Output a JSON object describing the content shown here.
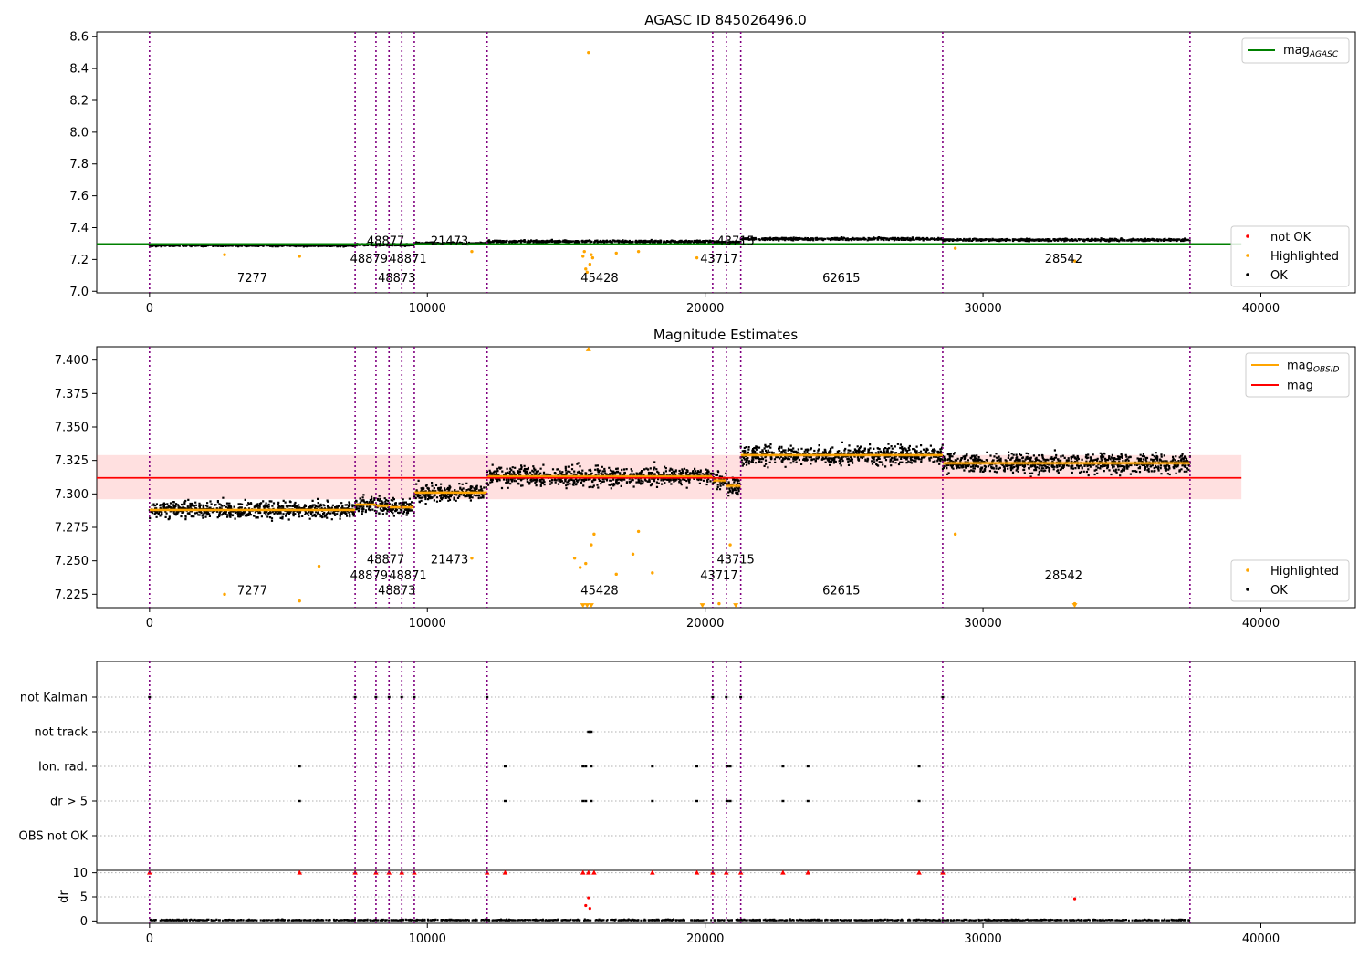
{
  "figure": {
    "top_title": "AGASC ID 845026496.0",
    "middle_title": "Magnitude Estimates"
  },
  "chart_data": [
    {
      "type": "scatter",
      "title": "AGASC ID 845026496.0",
      "xlim": [
        -1900,
        43400
      ],
      "ylim": [
        6.99,
        8.63
      ],
      "xticks": [
        0,
        10000,
        20000,
        30000,
        40000
      ],
      "yticks": [
        7.0,
        7.2,
        7.4,
        7.6,
        7.8,
        8.0,
        8.2,
        8.4,
        8.6
      ],
      "grid": false,
      "legend_top": {
        "placement": "top-right",
        "entries": [
          {
            "label": "mag",
            "subscript": "AGASC",
            "color": "#008000"
          }
        ]
      },
      "legend_bottom": {
        "placement": "lower-right",
        "entries": [
          {
            "label": "not OK",
            "color": "#ff0000"
          },
          {
            "label": "Highlighted",
            "color": "#ffa500"
          },
          {
            "label": "OK",
            "color": "#000000"
          }
        ]
      },
      "mag_agasc": 7.297,
      "mag_agasc_x": [
        -1900,
        39300
      ],
      "obs_segments": [
        {
          "x0": 0,
          "x1": 7400,
          "mean": 7.288,
          "spread": 0.006
        },
        {
          "x0": 7400,
          "x1": 8150,
          "mean": 7.292,
          "spread": 0.006
        },
        {
          "x0": 8150,
          "x1": 8620,
          "mean": 7.291,
          "spread": 0.006
        },
        {
          "x0": 8620,
          "x1": 9080,
          "mean": 7.29,
          "spread": 0.006
        },
        {
          "x0": 9080,
          "x1": 9530,
          "mean": 7.29,
          "spread": 0.006
        },
        {
          "x0": 9530,
          "x1": 12150,
          "mean": 7.301,
          "spread": 0.006
        },
        {
          "x0": 12150,
          "x1": 20270,
          "mean": 7.313,
          "spread": 0.007
        },
        {
          "x0": 20270,
          "x1": 20760,
          "mean": 7.31,
          "spread": 0.007
        },
        {
          "x0": 20760,
          "x1": 21280,
          "mean": 7.306,
          "spread": 0.007
        },
        {
          "x0": 21280,
          "x1": 28550,
          "mean": 7.329,
          "spread": 0.007
        },
        {
          "x0": 28550,
          "x1": 37450,
          "mean": 7.323,
          "spread": 0.007
        }
      ],
      "obs_lines": [
        0,
        7400,
        8150,
        8620,
        9080,
        9530,
        12150,
        20270,
        20760,
        21280,
        28550,
        37450
      ],
      "obsid_labels": [
        {
          "text": "7277",
          "x": 3700,
          "y": 7.06
        },
        {
          "text": "48879",
          "x": 7900,
          "y": 7.18
        },
        {
          "text": "48877",
          "x": 8500,
          "y": 7.29
        },
        {
          "text": "48873",
          "x": 8900,
          "y": 7.06
        },
        {
          "text": "48871",
          "x": 9300,
          "y": 7.18
        },
        {
          "text": "21473",
          "x": 10800,
          "y": 7.29
        },
        {
          "text": "45428",
          "x": 16200,
          "y": 7.06
        },
        {
          "text": "43717",
          "x": 20500,
          "y": 7.18
        },
        {
          "text": "43715",
          "x": 21100,
          "y": 7.29
        },
        {
          "text": "62615",
          "x": 24900,
          "y": 7.06
        },
        {
          "text": "28542",
          "x": 32900,
          "y": 7.18
        }
      ],
      "highlighted_points": [
        {
          "x": 15800,
          "y": 8.5
        },
        {
          "x": 15700,
          "y": 7.14
        },
        {
          "x": 15750,
          "y": 7.12
        },
        {
          "x": 15850,
          "y": 7.17
        },
        {
          "x": 15600,
          "y": 7.22
        },
        {
          "x": 15900,
          "y": 7.23
        },
        {
          "x": 15650,
          "y": 7.25
        },
        {
          "x": 15950,
          "y": 7.21
        },
        {
          "x": 2700,
          "y": 7.23
        },
        {
          "x": 5400,
          "y": 7.22
        },
        {
          "x": 33300,
          "y": 7.19
        },
        {
          "x": 29000,
          "y": 7.27
        },
        {
          "x": 19700,
          "y": 7.21
        },
        {
          "x": 16800,
          "y": 7.24
        },
        {
          "x": 17600,
          "y": 7.25
        },
        {
          "x": 11600,
          "y": 7.25
        }
      ]
    },
    {
      "type": "scatter",
      "title": "Magnitude Estimates",
      "xlim": [
        -1900,
        43400
      ],
      "ylim": [
        7.215,
        7.41
      ],
      "xticks": [
        0,
        10000,
        20000,
        30000,
        40000
      ],
      "yticks": [
        7.225,
        7.25,
        7.275,
        7.3,
        7.325,
        7.35,
        7.375,
        7.4
      ],
      "ytick_labels": [
        "7.225",
        "7.250",
        "7.275",
        "7.300",
        "7.325",
        "7.350",
        "7.375",
        "7.400"
      ],
      "grid": false,
      "legend_top": {
        "placement": "top-right",
        "entries": [
          {
            "label": "mag",
            "subscript": "OBSID",
            "color": "#ffa500"
          },
          {
            "label": "mag",
            "color": "#ff0000"
          }
        ]
      },
      "legend_bottom": {
        "placement": "lower-right",
        "entries": [
          {
            "label": "Highlighted",
            "color": "#ffa500"
          },
          {
            "label": "OK",
            "color": "#000000"
          }
        ]
      },
      "mag": 7.312,
      "mag_band": [
        7.296,
        7.329
      ],
      "mag_x": [
        -1900,
        39300
      ],
      "obsid_labels": [
        {
          "text": "7277",
          "x": 3700,
          "y": 7.225
        },
        {
          "text": "48879",
          "x": 7900,
          "y": 7.236
        },
        {
          "text": "48877",
          "x": 8500,
          "y": 7.248
        },
        {
          "text": "48873",
          "x": 8900,
          "y": 7.225
        },
        {
          "text": "48871",
          "x": 9300,
          "y": 7.236
        },
        {
          "text": "21473",
          "x": 10800,
          "y": 7.248
        },
        {
          "text": "45428",
          "x": 16200,
          "y": 7.225
        },
        {
          "text": "43717",
          "x": 20500,
          "y": 7.236
        },
        {
          "text": "43715",
          "x": 21100,
          "y": 7.248
        },
        {
          "text": "62615",
          "x": 24900,
          "y": 7.225
        },
        {
          "text": "28542",
          "x": 32900,
          "y": 7.236
        }
      ],
      "highlighted_points": [
        {
          "x": 2700,
          "y": 7.225
        },
        {
          "x": 5400,
          "y": 7.22
        },
        {
          "x": 6100,
          "y": 7.246
        },
        {
          "x": 15300,
          "y": 7.252
        },
        {
          "x": 15500,
          "y": 7.245
        },
        {
          "x": 15700,
          "y": 7.248
        },
        {
          "x": 15900,
          "y": 7.262
        },
        {
          "x": 16000,
          "y": 7.27
        },
        {
          "x": 16800,
          "y": 7.24
        },
        {
          "x": 17400,
          "y": 7.255
        },
        {
          "x": 17600,
          "y": 7.272
        },
        {
          "x": 18100,
          "y": 7.241
        },
        {
          "x": 11600,
          "y": 7.252
        },
        {
          "x": 20900,
          "y": 7.262
        },
        {
          "x": 29000,
          "y": 7.27
        },
        {
          "x": 20500,
          "y": 7.218
        },
        {
          "x": 33300,
          "y": 7.218
        }
      ],
      "off_scale_markers": [
        {
          "x": 15800,
          "y": 7.408,
          "dir": "up"
        },
        {
          "x": 15600,
          "y": 7.217,
          "dir": "down"
        },
        {
          "x": 15750,
          "y": 7.217,
          "dir": "down"
        },
        {
          "x": 15900,
          "y": 7.217,
          "dir": "down"
        },
        {
          "x": 19900,
          "y": 7.217,
          "dir": "down"
        },
        {
          "x": 21100,
          "y": 7.217,
          "dir": "down"
        },
        {
          "x": 33300,
          "y": 7.217,
          "dir": "down"
        }
      ]
    },
    {
      "type": "scatter",
      "title": "",
      "xlim": [
        -1900,
        43400
      ],
      "xticks": [
        0,
        10000,
        20000,
        30000,
        40000
      ],
      "flag_rows": [
        "not Kalman",
        "not track",
        "Ion. rad.",
        "dr > 5",
        "OBS not OK"
      ],
      "flag_points": {
        "not Kalman": [
          0,
          7400,
          8150,
          8620,
          9080,
          9530,
          12150,
          20270,
          20760,
          21280,
          28550
        ],
        "not track": [
          15800,
          15850,
          15900
        ],
        "Ion. rad.": [
          5400,
          12800,
          15600,
          15700,
          15900,
          18100,
          19700,
          20800,
          20900,
          22800,
          23700,
          27700
        ],
        "dr > 5": [
          5400,
          12800,
          15600,
          15700,
          15900,
          18100,
          19700,
          20800,
          20900,
          22800,
          23700,
          27700
        ],
        "OBS not OK": []
      },
      "dr_ylabel": "dr",
      "dr_ylim": [
        -0.5,
        10.5
      ],
      "dr_yticks": [
        0,
        5,
        10
      ],
      "dr_clip_points": [
        0,
        5400,
        7400,
        8150,
        8620,
        9080,
        9530,
        12150,
        12800,
        15600,
        15800,
        16000,
        18100,
        19700,
        20270,
        20760,
        21280,
        22800,
        23700,
        27700,
        28550
      ],
      "dr_spikes": [
        {
          "x": 15800,
          "y": 4.8
        },
        {
          "x": 15700,
          "y": 3.2
        },
        {
          "x": 15850,
          "y": 2.6
        },
        {
          "x": 33300,
          "y": 4.6
        }
      ]
    }
  ]
}
